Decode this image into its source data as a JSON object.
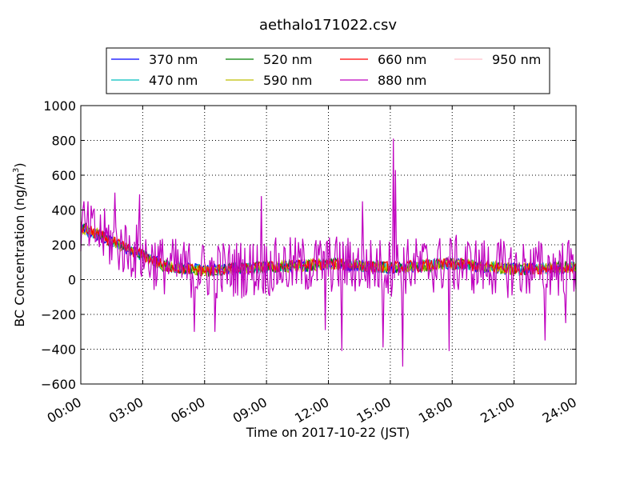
{
  "chart_data": {
    "type": "line",
    "title": "aethalo171022.csv",
    "xlabel": "Time on 2017-10-22 (JST)",
    "ylabel": "BC Concentration (ng/m",
    "ylabel_sup": "3",
    "ylabel_end": ")",
    "xlim": [
      "00:00",
      "24:00"
    ],
    "ylim": [
      -600,
      1000
    ],
    "x_ticks": [
      "00:00",
      "03:00",
      "06:00",
      "09:00",
      "12:00",
      "15:00",
      "18:00",
      "21:00",
      "24:00"
    ],
    "y_ticks": [
      "−600",
      "−400",
      "−200",
      "0",
      "200",
      "400",
      "600",
      "800",
      "1000"
    ],
    "grid": true,
    "legend_position": "top-center",
    "legend_columns": 4,
    "legend_entries": [
      "370 nm",
      "470 nm",
      "520 nm",
      "590 nm",
      "660 nm",
      "880 nm",
      "950 nm"
    ],
    "series": [
      {
        "name": "370 nm",
        "color": "#0000ff",
        "times": [
          "00:00",
          "01:00",
          "02:00",
          "03:00",
          "04:00",
          "06:00",
          "09:00",
          "12:00",
          "15:00",
          "18:00",
          "21:00",
          "24:00"
        ],
        "values": [
          300,
          250,
          190,
          140,
          80,
          50,
          70,
          90,
          70,
          90,
          60,
          70
        ]
      },
      {
        "name": "470 nm",
        "color": "#00bfbf",
        "times": [
          "00:00",
          "01:00",
          "02:00",
          "03:00",
          "04:00",
          "06:00",
          "09:00",
          "12:00",
          "15:00",
          "18:00",
          "21:00",
          "24:00"
        ],
        "values": [
          300,
          250,
          190,
          140,
          80,
          50,
          70,
          90,
          70,
          90,
          60,
          70
        ]
      },
      {
        "name": "520 nm",
        "color": "#008000",
        "times": [
          "00:00",
          "01:00",
          "02:00",
          "03:00",
          "04:00",
          "06:00",
          "09:00",
          "12:00",
          "15:00",
          "18:00",
          "21:00",
          "24:00"
        ],
        "values": [
          300,
          250,
          190,
          140,
          80,
          50,
          70,
          90,
          70,
          90,
          60,
          70
        ]
      },
      {
        "name": "590 nm",
        "color": "#bfbf00",
        "times": [
          "00:00",
          "01:00",
          "02:00",
          "03:00",
          "04:00",
          "06:00",
          "09:00",
          "12:00",
          "15:00",
          "18:00",
          "21:00",
          "24:00"
        ],
        "values": [
          300,
          250,
          190,
          140,
          80,
          50,
          70,
          90,
          70,
          90,
          60,
          70
        ]
      },
      {
        "name": "660 nm",
        "color": "#ff0000",
        "times": [
          "00:00",
          "01:00",
          "02:00",
          "03:00",
          "04:00",
          "06:00",
          "09:00",
          "12:00",
          "15:00",
          "18:00",
          "21:00",
          "24:00"
        ],
        "values": [
          300,
          250,
          190,
          140,
          80,
          50,
          70,
          90,
          70,
          90,
          60,
          70
        ]
      },
      {
        "name": "880 nm",
        "color": "#bf00bf",
        "times": [
          "00:00",
          "01:00",
          "02:00",
          "03:00",
          "04:00",
          "06:00",
          "09:00",
          "12:00",
          "15:00",
          "18:00",
          "21:00",
          "24:00"
        ],
        "values": [
          300,
          250,
          190,
          140,
          80,
          50,
          70,
          90,
          70,
          90,
          60,
          70
        ],
        "peaks": [
          {
            "time": "00:10",
            "value": 450
          },
          {
            "time": "01:40",
            "value": 500
          },
          {
            "time": "02:50",
            "value": 490
          },
          {
            "time": "08:45",
            "value": 480
          },
          {
            "time": "13:40",
            "value": 450
          },
          {
            "time": "15:10",
            "value": 810
          },
          {
            "time": "15:15",
            "value": 630
          },
          {
            "time": "12:40",
            "value": -410
          },
          {
            "time": "15:35",
            "value": -500
          },
          {
            "time": "17:50",
            "value": -410
          },
          {
            "time": "05:30",
            "value": -300
          },
          {
            "time": "06:30",
            "value": -300
          },
          {
            "time": "11:50",
            "value": -290
          },
          {
            "time": "14:40",
            "value": -390
          },
          {
            "time": "22:30",
            "value": -350
          },
          {
            "time": "23:30",
            "value": -250
          }
        ]
      },
      {
        "name": "950 nm",
        "color": "#ffc0cb",
        "times": [
          "00:00",
          "01:00",
          "02:00",
          "03:00",
          "04:00",
          "06:00",
          "09:00",
          "12:00",
          "15:00",
          "18:00",
          "21:00",
          "24:00"
        ],
        "values": [
          300,
          250,
          190,
          140,
          80,
          50,
          70,
          90,
          70,
          90,
          60,
          70
        ]
      }
    ]
  }
}
